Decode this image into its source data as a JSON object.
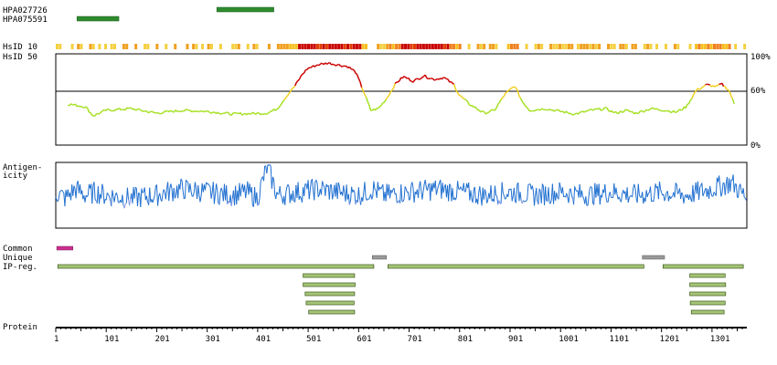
{
  "labels": {
    "antibody_1": "HPA027726",
    "antibody_2": "HPA075591",
    "hsid10": "HsID 10",
    "hsid50": "HsID 50",
    "antigenicity_1": "Antigen-",
    "antigenicity_2": "icity",
    "common": "Common",
    "unique": "Unique",
    "ipreg": "IP-reg.",
    "protein": "Protein",
    "pct_100": "100%",
    "pct_60": "60%",
    "pct_0": "0%"
  },
  "protein_length": 1370,
  "colors": {
    "antibody": "#2e8b2e",
    "common": "#cc2f8f",
    "unique": "#9a9a9a",
    "ipreg": "#a6c477",
    "identity_high": "#cc0000",
    "identity_mid": "#f0d020",
    "identity_low": "#a4e020",
    "antigen_dark": "#2070d0",
    "antigen_light": "#8898e8"
  },
  "antibodies": [
    {
      "name": "HPA027726",
      "start": 320,
      "end": 433
    },
    {
      "name": "HPA075591",
      "start": 43,
      "end": 126
    }
  ],
  "common_regions": [
    {
      "start": 3,
      "end": 35
    }
  ],
  "unique_regions": [
    {
      "start": 628,
      "end": 656
    },
    {
      "start": 1163,
      "end": 1207
    }
  ],
  "ip_regions": [
    {
      "row": 0,
      "start": 5,
      "end": 631
    },
    {
      "row": 0,
      "start": 659,
      "end": 1166
    },
    {
      "row": 0,
      "start": 1204,
      "end": 1363
    },
    {
      "row": 1,
      "start": 491,
      "end": 593
    },
    {
      "row": 2,
      "start": 491,
      "end": 594
    },
    {
      "row": 3,
      "start": 495,
      "end": 593
    },
    {
      "row": 4,
      "start": 497,
      "end": 592
    },
    {
      "row": 5,
      "start": 502,
      "end": 593
    },
    {
      "row": 1,
      "start": 1257,
      "end": 1327
    },
    {
      "row": 2,
      "start": 1257,
      "end": 1328
    },
    {
      "row": 3,
      "start": 1257,
      "end": 1328
    },
    {
      "row": 4,
      "start": 1258,
      "end": 1327
    },
    {
      "row": 5,
      "start": 1260,
      "end": 1325
    }
  ],
  "ticks": [
    1,
    101,
    201,
    301,
    401,
    501,
    601,
    701,
    801,
    901,
    1001,
    1101,
    1201,
    1301
  ],
  "identity_profile": [
    [
      25,
      45
    ],
    [
      60,
      42
    ],
    [
      75,
      32
    ],
    [
      100,
      38
    ],
    [
      150,
      40
    ],
    [
      200,
      35
    ],
    [
      250,
      38
    ],
    [
      300,
      37
    ],
    [
      350,
      34
    ],
    [
      420,
      35
    ],
    [
      440,
      40
    ],
    [
      460,
      55
    ],
    [
      475,
      65
    ],
    [
      490,
      78
    ],
    [
      500,
      84
    ],
    [
      520,
      88
    ],
    [
      540,
      90
    ],
    [
      560,
      88
    ],
    [
      580,
      86
    ],
    [
      595,
      80
    ],
    [
      610,
      60
    ],
    [
      625,
      38
    ],
    [
      640,
      40
    ],
    [
      655,
      50
    ],
    [
      675,
      68
    ],
    [
      690,
      75
    ],
    [
      710,
      70
    ],
    [
      730,
      76
    ],
    [
      750,
      72
    ],
    [
      770,
      74
    ],
    [
      790,
      66
    ],
    [
      800,
      55
    ],
    [
      820,
      45
    ],
    [
      850,
      35
    ],
    [
      870,
      38
    ],
    [
      890,
      55
    ],
    [
      910,
      65
    ],
    [
      925,
      48
    ],
    [
      940,
      38
    ],
    [
      970,
      40
    ],
    [
      1000,
      37
    ],
    [
      1030,
      34
    ],
    [
      1060,
      38
    ],
    [
      1090,
      40
    ],
    [
      1110,
      35
    ],
    [
      1130,
      38
    ],
    [
      1150,
      35
    ],
    [
      1180,
      40
    ],
    [
      1210,
      38
    ],
    [
      1230,
      36
    ],
    [
      1250,
      42
    ],
    [
      1270,
      60
    ],
    [
      1290,
      66
    ],
    [
      1310,
      64
    ],
    [
      1320,
      67
    ],
    [
      1335,
      60
    ],
    [
      1345,
      45
    ]
  ],
  "antigenicity_profile": [
    [
      1,
      0.55
    ],
    [
      20,
      0.45
    ],
    [
      40,
      0.6
    ],
    [
      60,
      0.5
    ],
    [
      80,
      0.55
    ],
    [
      100,
      0.5
    ],
    [
      150,
      0.45
    ],
    [
      200,
      0.5
    ],
    [
      220,
      0.55
    ],
    [
      250,
      0.6
    ],
    [
      300,
      0.55
    ],
    [
      350,
      0.5
    ],
    [
      380,
      0.55
    ],
    [
      400,
      0.45
    ],
    [
      420,
      0.95
    ],
    [
      440,
      0.5
    ],
    [
      480,
      0.55
    ],
    [
      520,
      0.6
    ],
    [
      560,
      0.55
    ],
    [
      600,
      0.5
    ],
    [
      630,
      0.6
    ],
    [
      650,
      0.5
    ],
    [
      700,
      0.55
    ],
    [
      760,
      0.6
    ],
    [
      800,
      0.55
    ],
    [
      850,
      0.5
    ],
    [
      900,
      0.55
    ],
    [
      950,
      0.5
    ],
    [
      1000,
      0.55
    ],
    [
      1050,
      0.5
    ],
    [
      1100,
      0.55
    ],
    [
      1150,
      0.5
    ],
    [
      1200,
      0.55
    ],
    [
      1250,
      0.5
    ],
    [
      1300,
      0.6
    ],
    [
      1340,
      0.7
    ],
    [
      1370,
      0.45
    ]
  ]
}
